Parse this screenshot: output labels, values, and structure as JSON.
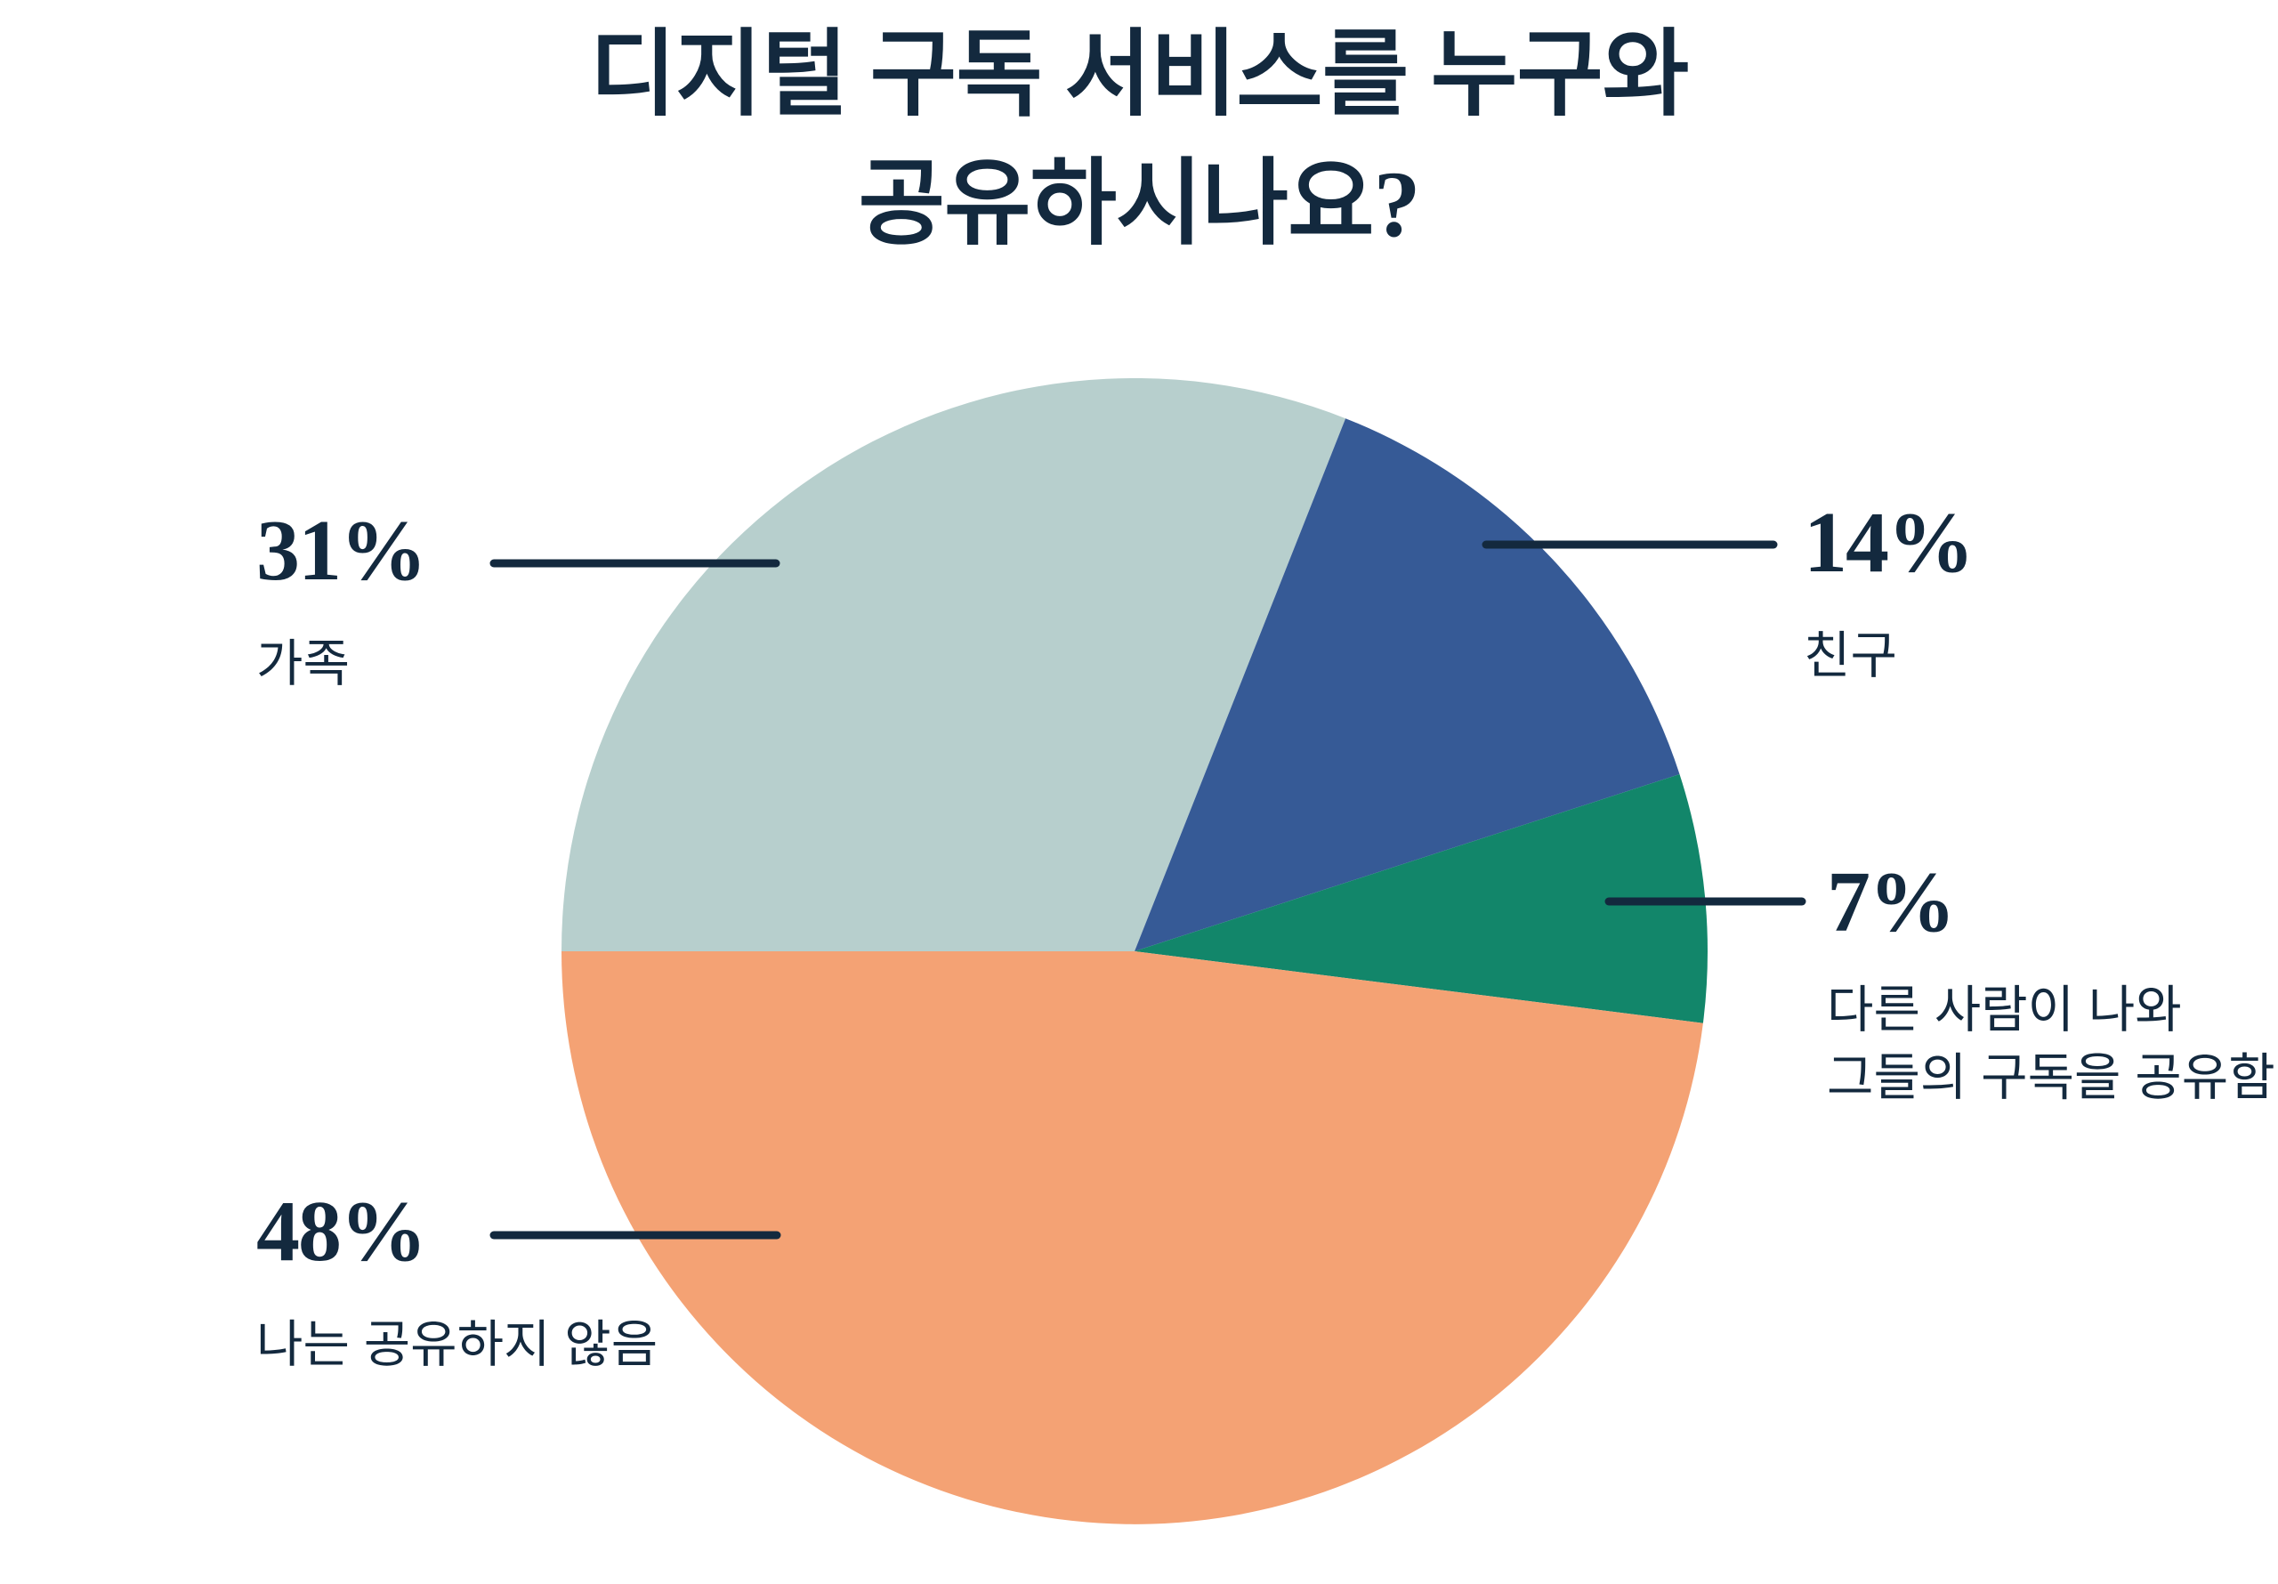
{
  "title": {
    "line1": "디지털 구독 서비스를 누구와",
    "line2": "공유하시나요?"
  },
  "colors": {
    "ink": "#13293e",
    "background": "#ffffff",
    "family_slice": "#b7cfcd",
    "friends_slice": "#365a96",
    "shared_with_me_slice": "#12866a",
    "not_sharing_slice": "#f4a274"
  },
  "chart_data": {
    "type": "pie",
    "title": "디지털 구독 서비스를 누구와 공유하시나요?",
    "categories": [
      "가족",
      "친구",
      "다른 사람이 나와 그들의 구독을 공유함",
      "나는 공유하지 않음"
    ],
    "values": [
      31,
      14,
      7,
      48
    ],
    "unit": "%",
    "colors": [
      "#b7cfcd",
      "#365a96",
      "#12866a",
      "#f4a274"
    ],
    "start_angle_deg": 180,
    "direction": "clockwise",
    "legend_position": "callout labels with leader lines"
  },
  "callouts": {
    "family": {
      "percent": "31%",
      "label": "가족"
    },
    "friends": {
      "percent": "14%",
      "label": "친구"
    },
    "shared_with_me": {
      "percent": "7%",
      "label_line1": "다른 사람이 나와",
      "label_line2": "그들의 구독을 공유함"
    },
    "not_sharing": {
      "percent": "48%",
      "label": "나는 공유하지 않음"
    }
  }
}
